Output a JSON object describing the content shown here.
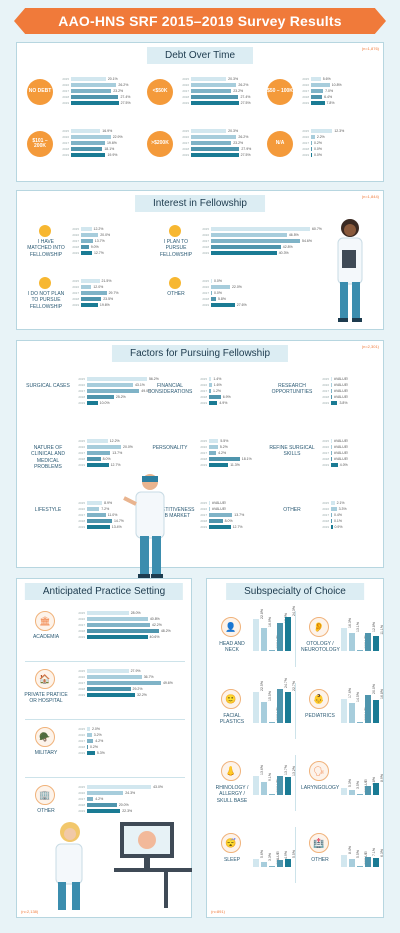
{
  "title": "AAO-HNS SRF 2015–2019 Survey Results",
  "years": [
    "2015",
    "2016",
    "2017",
    "2018",
    "2019"
  ],
  "colors": {
    "c2015": "#d2e7ef",
    "c2016": "#a7cddc",
    "c2017": "#7fb3c7",
    "c2018": "#4f95ad",
    "c2019": "#1a7b94",
    "accent": "#f07a3a"
  },
  "debt": {
    "title": "Debt Over Time",
    "n": "(n=1,876)",
    "groups": [
      {
        "label": "NO DEBT",
        "values": [
          "20.1%",
          "26.2%",
          "23.2%",
          "27.4%",
          "27.5%"
        ]
      },
      {
        "label": "<$50K",
        "values": [
          "20.3%",
          "26.2%",
          "23.2%",
          "27.4%",
          "27.5%"
        ]
      },
      {
        "label": "$50 – 100K",
        "values": [
          "5.6%",
          "10.8%",
          "7.0%",
          "6.4%",
          "7.8%"
        ]
      },
      {
        "label": "$101 – 200K",
        "values": [
          "16.9%",
          "22.9%",
          "19.6%",
          "18.1%",
          "19.9%"
        ]
      },
      {
        "label": ">$200K",
        "values": [
          "20.3%",
          "26.2%",
          "23.2%",
          "27.9%",
          "27.5%"
        ]
      },
      {
        "label": "N/A",
        "values": [
          "12.3%",
          "2.2%",
          "0.2%",
          "0.0%",
          "0.0%"
        ]
      }
    ]
  },
  "fellowship": {
    "title": "Interest in Fellowship",
    "n": "(n=1,844)",
    "groups": [
      {
        "label": "I HAVE MATCHED INTO FELLOWSHIP",
        "values": [
          "12.2%",
          "20.0%",
          "13.7%",
          "9.0%",
          "12.7%"
        ]
      },
      {
        "label": "I PLAN TO PURSUE FELLOWSHIP",
        "values": [
          "60.7%",
          "46.5%",
          "54.6%",
          "42.8%",
          "40.3%"
        ]
      },
      {
        "label": "I DO NOT PLAN TO PURSUE FELLOWSHIP",
        "values": [
          "21.5%",
          "12.0%",
          "29.7%",
          "23.5%",
          "19.6%"
        ]
      },
      {
        "label": "OTHER",
        "values": [
          "0.0%",
          "22.0%",
          "0.0%",
          "5.8%",
          "27.6%"
        ]
      }
    ]
  },
  "factors": {
    "title": "Factors for Pursuing Fellowship",
    "n": "(n=2,301)",
    "groups": [
      {
        "label": "SURGICAL CASES",
        "values": [
          "56.2%",
          "43.1%",
          "49.0%",
          "25.2%",
          "10.0%"
        ]
      },
      {
        "label": "FINANCIAL CONSIDERATIONS",
        "values": [
          "1.4%",
          "1.6%",
          "1.2%",
          "6.9%",
          "4.9%"
        ]
      },
      {
        "label": "RESEARCH OPPORTUNITIES",
        "values": [
          "#VALUE!",
          "#VALUE!",
          "#VALUE!",
          "#VALUE!",
          "3.8%"
        ]
      },
      {
        "label": "NATURE OF CLINICAL AND MEDICAL PROBLEMS",
        "values": [
          "12.2%",
          "20.0%",
          "13.7%",
          "8.0%",
          "12.7%"
        ]
      },
      {
        "label": "PERSONALITY",
        "values": [
          "5.5%",
          "5.2%",
          "4.2%",
          "18.1%",
          "11.3%"
        ]
      },
      {
        "label": "REFINE SURGICAL SKILLS",
        "values": [
          "#VALUE!",
          "#VALUE!",
          "#VALUE!",
          "#VALUE!",
          "4.0%"
        ]
      },
      {
        "label": "LIFESTYLE",
        "values": [
          "8.9%",
          "7.2%",
          "11.0%",
          "14.7%",
          "13.4%"
        ]
      },
      {
        "label": "COMPETITIVENESS OF JOB MARKET",
        "values": [
          "#VALUE!",
          "#VALUE!",
          "13.7%",
          "8.0%",
          "12.7%"
        ]
      },
      {
        "label": "OTHER",
        "values": [
          "2.1%",
          "3.3%",
          "0.4%",
          "0.1%",
          "0.9%"
        ]
      }
    ]
  },
  "practice": {
    "title": "Anticipated Practice Setting",
    "n": "(n=2,138)",
    "groups": [
      {
        "label": "ACADEMIA",
        "values": [
          "28.0%",
          "40.8%",
          "42.2%",
          "48.2%",
          "40.6%"
        ]
      },
      {
        "label": "PRIVATE PRATICE OR HOSPITAL",
        "values": [
          "27.9%",
          "36.7%",
          "49.6%",
          "29.2%",
          "32.2%"
        ]
      },
      {
        "label": "MILITARY",
        "values": [
          "2.0%",
          "3.2%",
          "4.2%",
          "0.2%",
          "5.3%"
        ]
      },
      {
        "label": "OTHER",
        "values": [
          "43.0%",
          "24.3%",
          "4.2%",
          "20.0%",
          "22.3%"
        ]
      }
    ]
  },
  "subspecialty": {
    "title": "Subspecialty of Choice",
    "n": "(n=891)",
    "groups": [
      {
        "label": "HEAD AND NECK",
        "values": [
          "22.8%",
          "16.9%",
          "#VALUE!",
          "19.9%",
          "24.3%"
        ]
      },
      {
        "label": "OTOLOGY / NEUROTOLOGY",
        "values": [
          "16.3%",
          "13.1%",
          "#VALUE!",
          "12.8%",
          "11.1%"
        ]
      },
      {
        "label": "FACIAL PLASTICS",
        "values": [
          "22.5%",
          "15.5%",
          "#VALUE!",
          "24.7%",
          "22.7%"
        ]
      },
      {
        "label": "PEDIATRICS",
        "values": [
          "17.6%",
          "14.5%",
          "#VALUE!",
          "20.0%",
          "16.8%"
        ]
      },
      {
        "label": "RHINOLOGY / ALLERGY / SKULL BASE",
        "values": [
          "13.6%",
          "9.1%",
          "#VALUE!",
          "13.7%",
          "13.2%"
        ]
      },
      {
        "label": "LARYNGOLOGY",
        "values": [
          "5.3%",
          "3.5%",
          "#VALUE!",
          "6.8%",
          "8.9%"
        ]
      },
      {
        "label": "SLEEP",
        "values": [
          "5.6%",
          "3.3%",
          "#VALUE!",
          "4.9%",
          "5.5%"
        ]
      },
      {
        "label": "OTHER",
        "values": [
          "8.4%",
          "5.5%",
          "#VALUE!",
          "7.1%",
          "6.3%"
        ]
      }
    ]
  },
  "chart_data": [
    {
      "type": "bar",
      "title": "Debt Over Time",
      "categories": [
        "2015",
        "2016",
        "2017",
        "2018",
        "2019"
      ],
      "series": [
        {
          "name": "NO DEBT",
          "values": [
            20.1,
            26.2,
            23.2,
            27.4,
            27.5
          ]
        },
        {
          "name": "<$50K",
          "values": [
            20.3,
            26.2,
            23.2,
            27.4,
            27.5
          ]
        },
        {
          "name": "$50 – 100K",
          "values": [
            5.6,
            10.8,
            7.0,
            6.4,
            7.8
          ]
        },
        {
          "name": "$101 – 200K",
          "values": [
            16.9,
            22.9,
            19.6,
            18.1,
            19.9
          ]
        },
        {
          "name": ">$200K",
          "values": [
            20.3,
            26.2,
            23.2,
            27.9,
            27.5
          ]
        },
        {
          "name": "N/A",
          "values": [
            12.3,
            2.2,
            0.2,
            0.0,
            0.0
          ]
        }
      ]
    },
    {
      "type": "bar",
      "title": "Interest in Fellowship",
      "categories": [
        "2015",
        "2016",
        "2017",
        "2018",
        "2019"
      ],
      "series": [
        {
          "name": "I HAVE MATCHED INTO FELLOWSHIP",
          "values": [
            12.2,
            20.0,
            13.7,
            9.0,
            12.7
          ]
        },
        {
          "name": "I PLAN TO PURSUE FELLOWSHIP",
          "values": [
            60.7,
            46.5,
            54.6,
            42.8,
            40.3
          ]
        },
        {
          "name": "I DO NOT PLAN TO PURSUE FELLOWSHIP",
          "values": [
            21.5,
            12.0,
            29.7,
            23.5,
            19.6
          ]
        },
        {
          "name": "OTHER",
          "values": [
            0.0,
            22.0,
            0.0,
            5.8,
            27.6
          ]
        }
      ]
    },
    {
      "type": "bar",
      "title": "Factors for Pursuing Fellowship",
      "categories": [
        "2015",
        "2016",
        "2017",
        "2018",
        "2019"
      ],
      "series": [
        {
          "name": "SURGICAL CASES",
          "values": [
            56.2,
            43.1,
            49.0,
            25.2,
            10.0
          ]
        },
        {
          "name": "FINANCIAL CONSIDERATIONS",
          "values": [
            1.4,
            1.6,
            1.2,
            6.9,
            4.9
          ]
        },
        {
          "name": "RESEARCH OPPORTUNITIES",
          "values": [
            null,
            null,
            null,
            null,
            3.8
          ]
        },
        {
          "name": "NATURE OF CLINICAL AND MEDICAL PROBLEMS",
          "values": [
            12.2,
            20.0,
            13.7,
            8.0,
            12.7
          ]
        },
        {
          "name": "PERSONALITY",
          "values": [
            5.5,
            5.2,
            4.2,
            18.1,
            11.3
          ]
        },
        {
          "name": "REFINE SURGICAL SKILLS",
          "values": [
            null,
            null,
            null,
            null,
            4.0
          ]
        },
        {
          "name": "LIFESTYLE",
          "values": [
            8.9,
            7.2,
            11.0,
            14.7,
            13.4
          ]
        },
        {
          "name": "COMPETITIVENESS OF JOB MARKET",
          "values": [
            null,
            null,
            13.7,
            8.0,
            12.7
          ]
        },
        {
          "name": "OTHER",
          "values": [
            2.1,
            3.3,
            0.4,
            0.1,
            0.9
          ]
        }
      ]
    },
    {
      "type": "bar",
      "title": "Anticipated Practice Setting",
      "categories": [
        "2015",
        "2016",
        "2017",
        "2018",
        "2019"
      ],
      "series": [
        {
          "name": "ACADEMIA",
          "values": [
            28.0,
            40.8,
            42.2,
            48.2,
            40.6
          ]
        },
        {
          "name": "PRIVATE PRATICE OR HOSPITAL",
          "values": [
            27.9,
            36.7,
            49.6,
            29.2,
            32.2
          ]
        },
        {
          "name": "MILITARY",
          "values": [
            2.0,
            3.2,
            4.2,
            0.2,
            5.3
          ]
        },
        {
          "name": "OTHER",
          "values": [
            43.0,
            24.3,
            4.2,
            20.0,
            22.3
          ]
        }
      ]
    },
    {
      "type": "bar",
      "title": "Subspecialty of Choice",
      "categories": [
        "2015",
        "2016",
        "2017",
        "2018",
        "2019"
      ],
      "series": [
        {
          "name": "HEAD AND NECK",
          "values": [
            22.8,
            16.9,
            null,
            19.9,
            24.3
          ]
        },
        {
          "name": "OTOLOGY / NEUROTOLOGY",
          "values": [
            16.3,
            13.1,
            null,
            12.8,
            11.1
          ]
        },
        {
          "name": "FACIAL PLASTICS",
          "values": [
            22.5,
            15.5,
            null,
            24.7,
            22.7
          ]
        },
        {
          "name": "PEDIATRICS",
          "values": [
            17.6,
            14.5,
            null,
            20.0,
            16.8
          ]
        },
        {
          "name": "RHINOLOGY / ALLERGY / SKULL BASE",
          "values": [
            13.6,
            9.1,
            null,
            13.7,
            13.2
          ]
        },
        {
          "name": "LARYNGOLOGY",
          "values": [
            5.3,
            3.5,
            null,
            6.8,
            8.9
          ]
        },
        {
          "name": "SLEEP",
          "values": [
            5.6,
            3.3,
            null,
            4.9,
            5.5
          ]
        },
        {
          "name": "OTHER",
          "values": [
            8.4,
            5.5,
            null,
            7.1,
            6.3
          ]
        }
      ]
    }
  ]
}
